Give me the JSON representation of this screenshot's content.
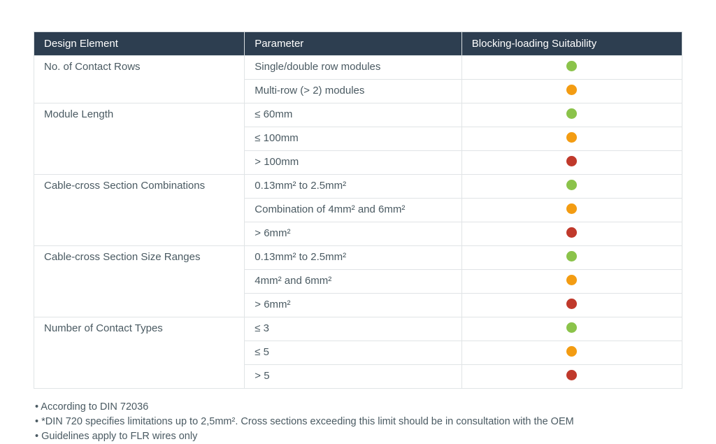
{
  "table": {
    "headers": [
      "Design Element",
      "Parameter",
      "Blocking-loading Suitability"
    ],
    "colors": {
      "green": "#8bc34a",
      "orange": "#f39c12",
      "red": "#c0392b"
    },
    "groups": [
      {
        "element": "No. of Contact Rows",
        "rows": [
          {
            "param": "Single/double row modules",
            "status": "green"
          },
          {
            "param": "Multi-row (> 2) modules",
            "status": "orange"
          }
        ]
      },
      {
        "element": "Module Length",
        "rows": [
          {
            "param": "≤ 60mm",
            "status": "green"
          },
          {
            "param": "≤ 100mm",
            "status": "orange"
          },
          {
            "param": "> 100mm",
            "status": "red"
          }
        ]
      },
      {
        "element": "Cable-cross Section Combinations",
        "rows": [
          {
            "param": "0.13mm² to 2.5mm²",
            "status": "green"
          },
          {
            "param": "Combination of 4mm² and 6mm²",
            "status": "orange"
          },
          {
            "param": "> 6mm²",
            "status": "red"
          }
        ]
      },
      {
        "element": "Cable-cross Section Size Ranges",
        "rows": [
          {
            "param": "0.13mm² to 2.5mm²",
            "status": "green"
          },
          {
            "param": "4mm² and 6mm²",
            "status": "orange"
          },
          {
            "param": "> 6mm²",
            "status": "red"
          }
        ]
      },
      {
        "element": "Number of Contact Types",
        "rows": [
          {
            "param": "≤ 3",
            "status": "green"
          },
          {
            "param": "≤ 5",
            "status": "orange"
          },
          {
            "param": "> 5",
            "status": "red"
          }
        ]
      }
    ]
  },
  "notes": [
    "• According to DIN 72036",
    "• *DIN 720 specifies limitations up to 2,5mm². Cross sections exceeding this limit should be in consultation with the OEM",
    "• Guidelines apply to FLR wires only"
  ]
}
